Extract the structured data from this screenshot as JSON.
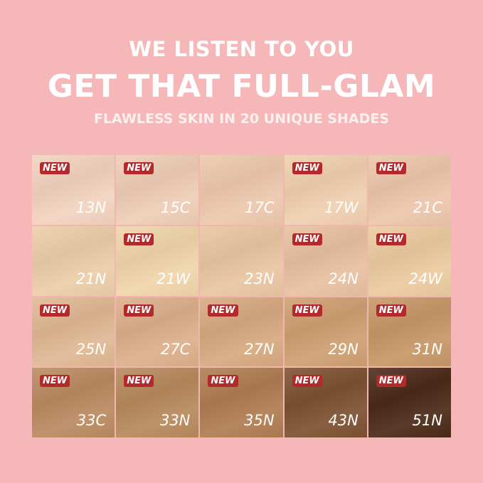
{
  "header": {
    "line1": "WE LISTEN TO YOU",
    "line2": "GET THAT FULL-GLAM",
    "line3": "FLAWLESS SKIN IN 20 UNIQUE SHADES"
  },
  "badge_label": "NEW",
  "colors": {
    "background": "#f5b7b7",
    "badge": "#b32a2d"
  },
  "shades": [
    {
      "name": "13N",
      "new": true,
      "color": "#f2d3be"
    },
    {
      "name": "15C",
      "new": true,
      "color": "#efcdb6"
    },
    {
      "name": "17C",
      "new": false,
      "color": "#edc8ad"
    },
    {
      "name": "17W",
      "new": true,
      "color": "#f0cfaf"
    },
    {
      "name": "21C",
      "new": true,
      "color": "#ecc6ab"
    },
    {
      "name": "21N",
      "new": false,
      "color": "#eccea8"
    },
    {
      "name": "21W",
      "new": true,
      "color": "#f0d5ab"
    },
    {
      "name": "23N",
      "new": false,
      "color": "#e8c6a1"
    },
    {
      "name": "24N",
      "new": true,
      "color": "#e8c0a0"
    },
    {
      "name": "24W",
      "new": true,
      "color": "#ebcb9f"
    },
    {
      "name": "25N",
      "new": true,
      "color": "#e0b893"
    },
    {
      "name": "27C",
      "new": true,
      "color": "#dcaf8b"
    },
    {
      "name": "27N",
      "new": true,
      "color": "#d7a97f"
    },
    {
      "name": "29N",
      "new": true,
      "color": "#cf9f71"
    },
    {
      "name": "31N",
      "new": true,
      "color": "#c79767"
    },
    {
      "name": "33C",
      "new": true,
      "color": "#bb8a60"
    },
    {
      "name": "33N",
      "new": true,
      "color": "#b8895b"
    },
    {
      "name": "35N",
      "new": true,
      "color": "#b07c51"
    },
    {
      "name": "43N",
      "new": true,
      "color": "#7d5131"
    },
    {
      "name": "51N",
      "new": true,
      "color": "#4b2a18"
    }
  ]
}
